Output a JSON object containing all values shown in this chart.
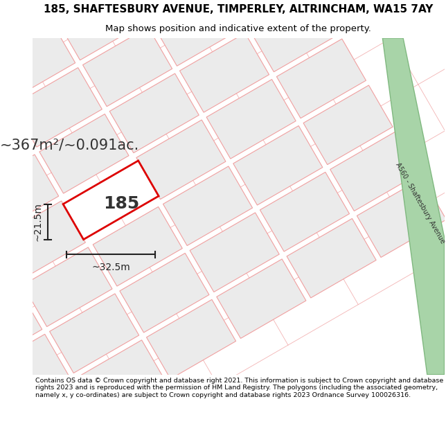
{
  "title_line1": "185, SHAFTESBURY AVENUE, TIMPERLEY, ALTRINCHAM, WA15 7AY",
  "title_line2": "Map shows position and indicative extent of the property.",
  "area_text": "~367m²/~0.091ac.",
  "property_number": "185",
  "dim_width": "~32.5m",
  "dim_height": "~21.5m",
  "footer_text": "Contains OS data © Crown copyright and database right 2021. This information is subject to Crown copyright and database rights 2023 and is reproduced with the permission of HM Land Registry. The polygons (including the associated geometry, namely x, y co-ordinates) are subject to Crown copyright and database rights 2023 Ordnance Survey 100026316.",
  "map_bg": "#f7f7f7",
  "title_bg": "#ffffff",
  "footer_bg": "#ffffff",
  "property_edge": "#dd0000",
  "road_fill": "#a8d4a8",
  "road_edge": "#80b880",
  "parcel_edge": "#f0a0a0",
  "parcel_fill": "#ebebeb",
  "dim_color": "#222222"
}
